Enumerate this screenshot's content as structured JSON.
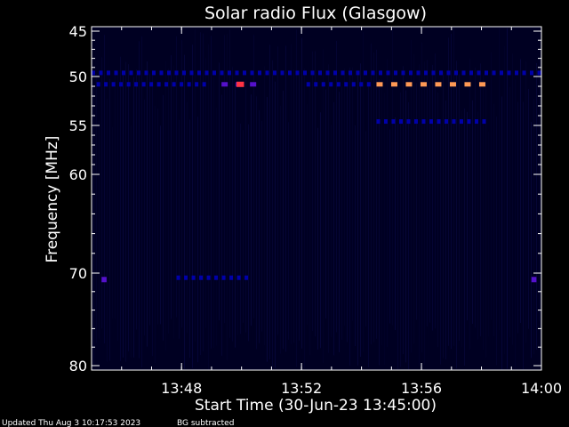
{
  "chart_data": {
    "type": "heatmap",
    "title": "Solar radio Flux (Glasgow)",
    "xlabel": "Start Time (30-Jun-23 13:45:00)",
    "ylabel": "Frequency [MHz]",
    "x_unit": "time of day (HH:MM)",
    "xlim": [
      "13:45:00",
      "14:00:00"
    ],
    "ylim": [
      45,
      80
    ],
    "y_axis_inverted": true,
    "x_ticks": [
      "13:48",
      "13:52",
      "13:56",
      "14:00"
    ],
    "y_ticks": [
      45,
      50,
      55,
      60,
      70,
      80
    ],
    "y_tick_labels": [
      "45",
      "50",
      "55",
      "60",
      "70",
      "80"
    ],
    "background_color": "#000022",
    "colors": {
      "low": "#0000aa",
      "mid": "#5511cc",
      "high": "#ff3344",
      "peak": "#ff9955"
    },
    "features": [
      {
        "kind": "periodic-band",
        "freq_mhz": 49.6,
        "t_start": "13:45:00",
        "t_end": "14:00:00",
        "level": "low"
      },
      {
        "kind": "periodic-band",
        "freq_mhz": 50.8,
        "t_start": "13:45:10",
        "t_end": "13:48:50",
        "level": "low"
      },
      {
        "kind": "burst-segment",
        "freq_mhz": 50.8,
        "t_start": "13:49:20",
        "t_end": "13:50:30",
        "level": "mid"
      },
      {
        "kind": "hot-spot",
        "freq_mhz": 50.8,
        "t_start": "13:49:50",
        "t_end": "13:50:05",
        "level": "high"
      },
      {
        "kind": "periodic-band",
        "freq_mhz": 50.8,
        "t_start": "13:52:10",
        "t_end": "13:54:20",
        "level": "low"
      },
      {
        "kind": "periodic-band",
        "freq_mhz": 50.8,
        "t_start": "13:54:30",
        "t_end": "13:58:10",
        "level": "peak"
      },
      {
        "kind": "periodic-band",
        "freq_mhz": 54.6,
        "t_start": "13:54:30",
        "t_end": "13:58:10",
        "level": "low"
      },
      {
        "kind": "periodic-band",
        "freq_mhz": 70.5,
        "t_start": "13:47:50",
        "t_end": "13:50:10",
        "level": "low"
      },
      {
        "kind": "hot-spot",
        "freq_mhz": 70.7,
        "t_start": "13:45:20",
        "t_end": "13:45:30",
        "level": "mid"
      },
      {
        "kind": "hot-spot",
        "freq_mhz": 70.7,
        "t_start": "13:59:40",
        "t_end": "13:59:50",
        "level": "mid"
      }
    ]
  },
  "footer": {
    "updated": "Updated Thu Aug  3 10:17:53 2023",
    "note": "BG subtracted"
  }
}
